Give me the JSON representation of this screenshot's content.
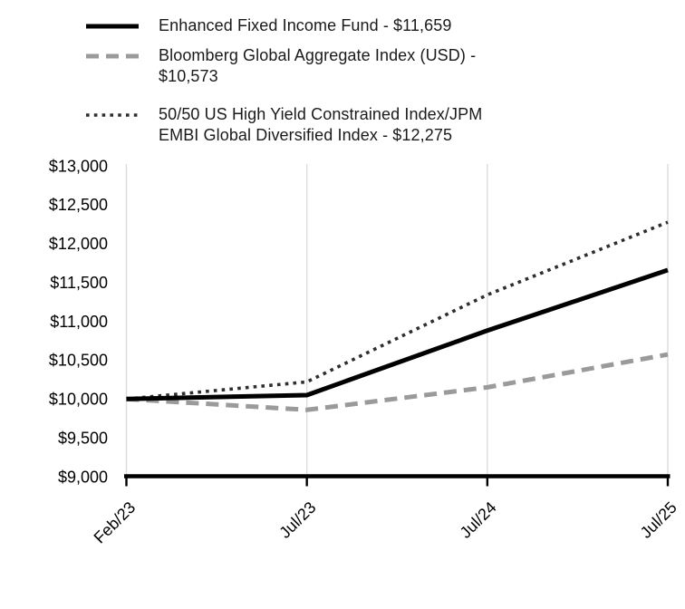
{
  "legend": {
    "items": [
      {
        "id": "fund",
        "lines": [
          "Enhanced Fixed Income Fund - $11,659"
        ]
      },
      {
        "id": "bloomberg",
        "lines": [
          "Bloomberg Global Aggregate Index (USD) -",
          "$10,573"
        ]
      },
      {
        "id": "blend",
        "lines": [
          "50/50 US High Yield Constrained Index/JPM",
          "EMBI Global Diversified Index - $12,275"
        ]
      }
    ]
  },
  "chart_data": {
    "type": "line",
    "title": "",
    "xlabel": "",
    "ylabel": "",
    "x": [
      "Feb/23",
      "Jul/23",
      "Jul/24",
      "Jul/25"
    ],
    "series": [
      {
        "id": "fund",
        "name": "Enhanced Fixed Income Fund",
        "final_label": "$11,659",
        "values": [
          10000,
          10050,
          10880,
          11659
        ],
        "style": "solid",
        "color": "#000000"
      },
      {
        "id": "bloomberg",
        "name": "Bloomberg Global Aggregate Index (USD)",
        "final_label": "$10,573",
        "values": [
          10000,
          9860,
          10150,
          10573
        ],
        "style": "dashed",
        "color": "#9a9a9a"
      },
      {
        "id": "blend",
        "name": "50/50 US High Yield Constrained Index/JPM EMBI Global Diversified Index",
        "final_label": "$12,275",
        "values": [
          10000,
          10220,
          11340,
          12275
        ],
        "style": "dotted",
        "color": "#2e2e2e"
      }
    ],
    "ylim": [
      9000,
      13000
    ],
    "y_ticks": [
      "$13,000",
      "$12,500",
      "$12,000",
      "$11,500",
      "$11,000",
      "$10,500",
      "$10,000",
      "$9,500",
      "$9,000"
    ],
    "y_tick_values": [
      13000,
      12500,
      12000,
      11500,
      11000,
      10500,
      10000,
      9500,
      9000
    ],
    "grid": "vertical-only",
    "gridline_color": "#dcdcdc",
    "axis_color": "#000000",
    "legend_position": "top-left"
  }
}
